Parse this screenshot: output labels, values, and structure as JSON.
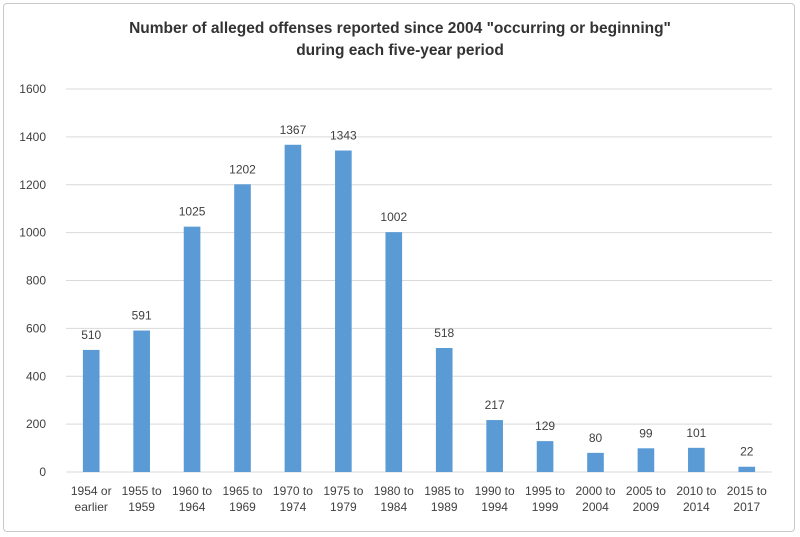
{
  "chart_data": {
    "type": "bar",
    "title_lines": [
      "Number of alleged offenses reported since 2004 \"occurring or beginning\"",
      "during each five-year period"
    ],
    "categories": [
      [
        "1954 or",
        "earlier"
      ],
      [
        "1955 to",
        "1959"
      ],
      [
        "1960 to",
        "1964"
      ],
      [
        "1965 to",
        "1969"
      ],
      [
        "1970 to",
        "1974"
      ],
      [
        "1975 to",
        "1979"
      ],
      [
        "1980 to",
        "1984"
      ],
      [
        "1985 to",
        "1989"
      ],
      [
        "1990 to",
        "1994"
      ],
      [
        "1995 to",
        "1999"
      ],
      [
        "2000 to",
        "2004"
      ],
      [
        "2005 to",
        "2009"
      ],
      [
        "2010 to",
        "2014"
      ],
      [
        "2015 to",
        "2017"
      ]
    ],
    "values": [
      510,
      591,
      1025,
      1202,
      1367,
      1343,
      1002,
      518,
      217,
      129,
      80,
      99,
      101,
      22
    ],
    "data_labels": [
      "510",
      "591",
      "1025",
      "1202",
      "1367",
      "1343",
      "1002",
      "518",
      "217",
      "129",
      "80",
      "99",
      "101",
      "22"
    ],
    "ylim": [
      0,
      1600
    ],
    "yticks": [
      0,
      200,
      400,
      600,
      800,
      1000,
      1200,
      1400,
      1600
    ],
    "ytick_labels": [
      "0",
      "200",
      "400",
      "600",
      "800",
      "1000",
      "1200",
      "1400",
      "1600"
    ],
    "grid": true,
    "legend": "none",
    "colors": {
      "bar": "#5b9bd5",
      "grid": "#d9d9d9",
      "text": "#404040",
      "title": "#333333"
    }
  }
}
